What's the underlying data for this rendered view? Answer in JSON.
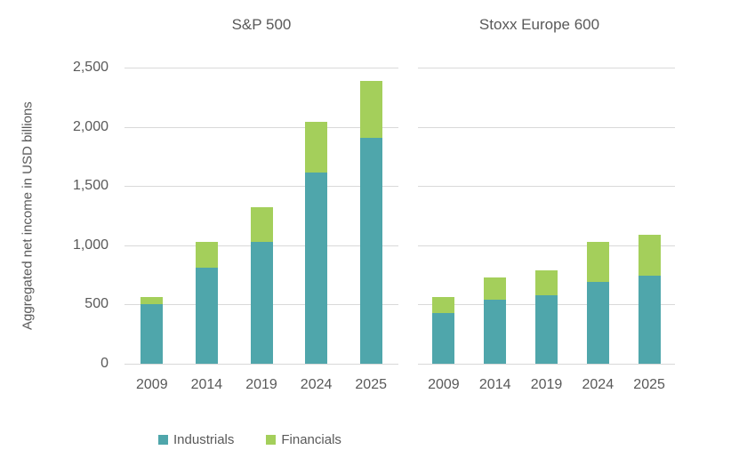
{
  "chart_data": {
    "type": "bar",
    "stacked": true,
    "title": "",
    "ylabel": "Aggregated net income in USD billions",
    "xlabel": "",
    "ylim": [
      0,
      2500
    ],
    "grid": true,
    "yticks": [
      0,
      500,
      1000,
      1500,
      2000,
      2500
    ],
    "ytick_labels": [
      "0",
      "500",
      "1,000",
      "1,500",
      "2,000",
      "2,500"
    ],
    "categories": [
      "2009",
      "2014",
      "2019",
      "2024",
      "2025"
    ],
    "panels": [
      {
        "title": "S&P 500",
        "series": [
          {
            "name": "Industrials",
            "color": "#4fa6ab",
            "values": [
              500,
              810,
              1030,
              1615,
              1910
            ]
          },
          {
            "name": "Financials",
            "color": "#a4cf5b",
            "values": [
              65,
              220,
              290,
              425,
              480
            ]
          }
        ]
      },
      {
        "title": "Stoxx Europe 600",
        "series": [
          {
            "name": "Industrials",
            "color": "#4fa6ab",
            "values": [
              430,
              540,
              575,
              690,
              740
            ]
          },
          {
            "name": "Financials",
            "color": "#a4cf5b",
            "values": [
              130,
              185,
              210,
              340,
              350
            ]
          }
        ]
      }
    ],
    "legend": {
      "position": "bottom",
      "items": [
        {
          "label": "Industrials",
          "color": "#4fa6ab"
        },
        {
          "label": "Financials",
          "color": "#a4cf5b"
        }
      ]
    },
    "colors": {
      "background": "#ffffff",
      "gridline": "#d9d9d9",
      "text": "#595959"
    }
  }
}
